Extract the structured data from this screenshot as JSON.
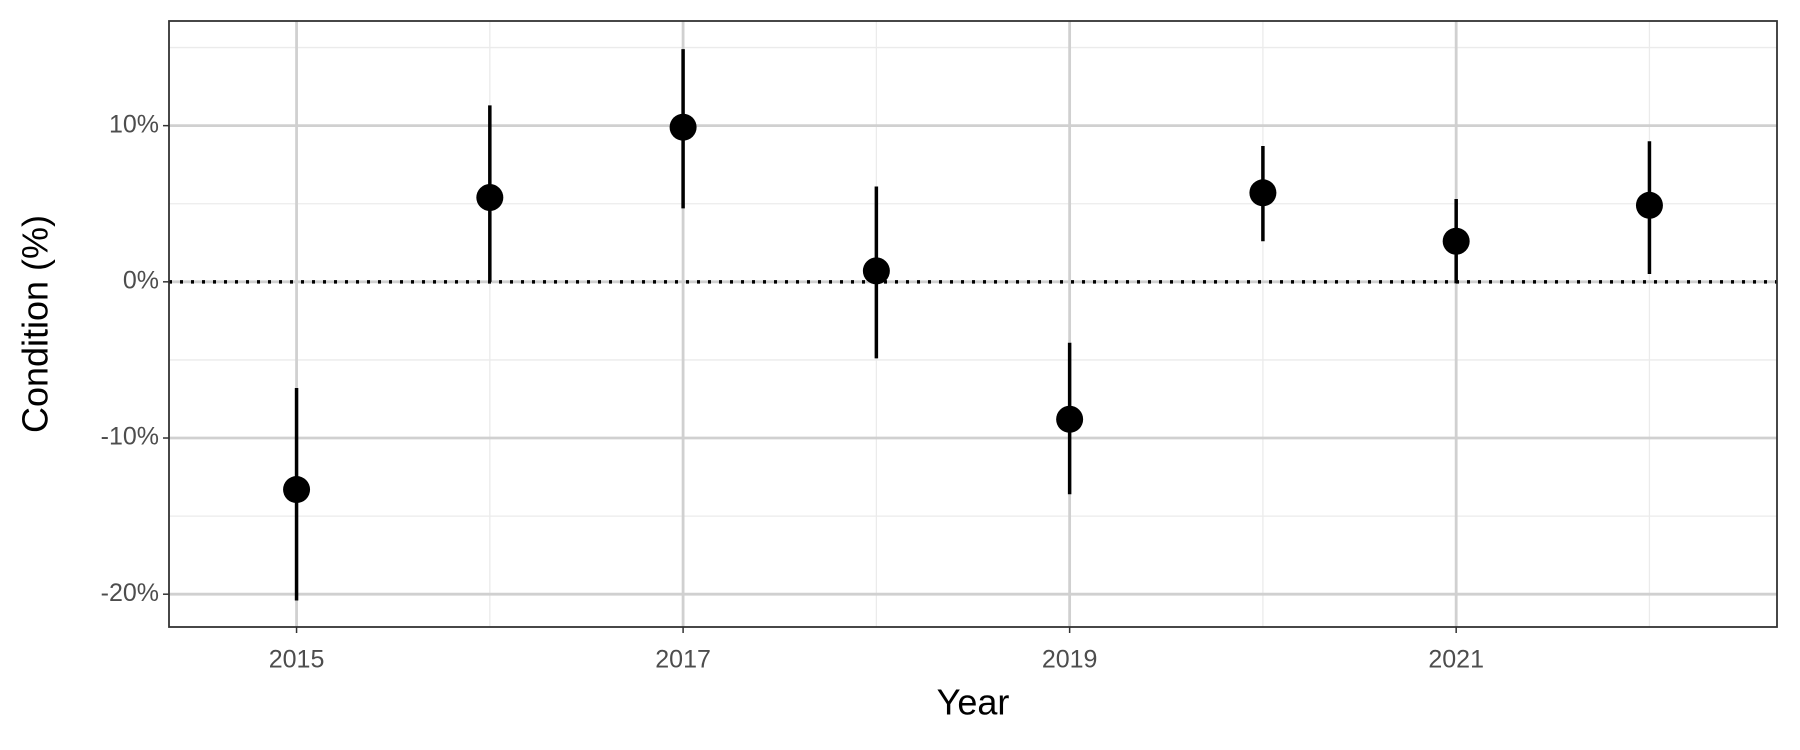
{
  "chart_data": {
    "type": "pointrange",
    "x_label": "Year",
    "y_label": "Condition (%)",
    "x": [
      2015,
      2016,
      2017,
      2018,
      2019,
      2020,
      2021,
      2022
    ],
    "series": [
      {
        "color": "#000000",
        "values": [
          -13.3,
          5.4,
          9.9,
          0.7,
          -8.8,
          5.7,
          2.6,
          4.9
        ],
        "lower": [
          -20.4,
          0.0,
          4.7,
          -4.9,
          -13.6,
          2.6,
          -0.1,
          0.5
        ],
        "upper": [
          -6.8,
          11.3,
          14.9,
          6.1,
          -3.9,
          8.7,
          5.3,
          9.0
        ]
      }
    ],
    "xlim": [
      2014.34,
      2022.66
    ],
    "xticks": [
      2015,
      2017,
      2019,
      2021
    ],
    "x_minor_ticks": [
      2016,
      2018,
      2020,
      2022
    ],
    "ylim": [
      -22.1,
      16.7
    ],
    "yticks": [
      {
        "value": -20,
        "label": "-20%"
      },
      {
        "value": -10,
        "label": "-10%"
      },
      {
        "value": 0,
        "label": "0%"
      },
      {
        "value": 10,
        "label": "10%"
      }
    ],
    "y_minor_ticks": [
      -15,
      -5,
      5,
      15
    ],
    "hline": 0,
    "grid": true
  }
}
